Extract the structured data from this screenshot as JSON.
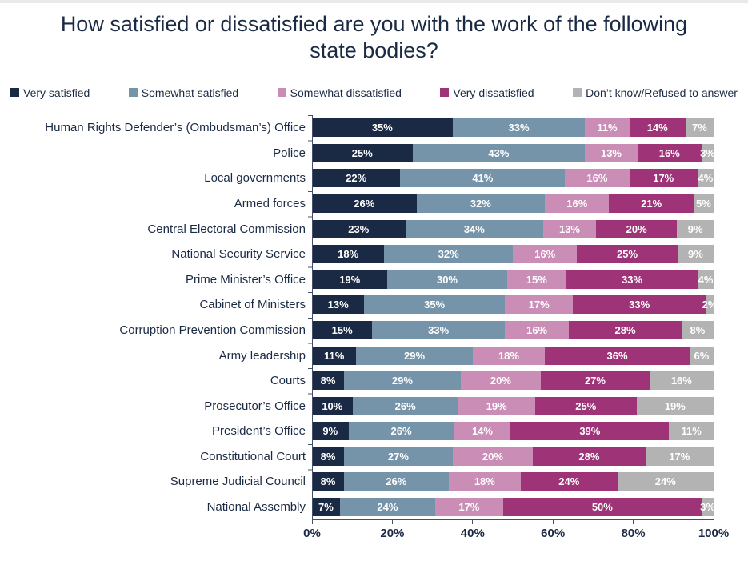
{
  "title": "How satisfied or dissatisfied are you with the work of the following state bodies?",
  "colors": {
    "title_text": "#1b2a44",
    "axis": "#44506a",
    "bar_label_text": "#ffffff",
    "background": "#ffffff",
    "top_border": "#e9e9ea"
  },
  "chart_data": {
    "type": "bar",
    "subtype": "100pct-stacked-horizontal",
    "title": "How satisfied or dissatisfied are you with the work of the following state bodies?",
    "legend_position": "top",
    "grid": false,
    "value_suffix": "%",
    "categories": [
      "Human Rights Defender’s (Ombudsman’s) Office",
      "Police",
      "Local governments",
      "Armed forces",
      "Central Electoral Commission",
      "National Security Service",
      "Prime Minister’s Office",
      "Cabinet of Ministers",
      "Corruption Prevention Commission",
      "Army leadership",
      "Courts",
      "Prosecutor’s Office",
      "President’s Office",
      "Constitutional Court",
      "Supreme Judicial Council",
      "National Assembly"
    ],
    "series": [
      {
        "name": "Very satisfied",
        "color": "#1b2a44",
        "values": [
          35,
          25,
          22,
          26,
          23,
          18,
          19,
          13,
          15,
          11,
          8,
          10,
          9,
          8,
          8,
          7
        ]
      },
      {
        "name": "Somewhat satisfied",
        "color": "#7594aa",
        "values": [
          33,
          43,
          41,
          32,
          34,
          32,
          30,
          35,
          33,
          29,
          29,
          26,
          26,
          27,
          26,
          24
        ]
      },
      {
        "name": "Somewhat dissatisfied",
        "color": "#c98db6",
        "values": [
          11,
          13,
          16,
          16,
          13,
          16,
          15,
          17,
          16,
          18,
          20,
          19,
          14,
          20,
          18,
          17
        ]
      },
      {
        "name": "Very dissatisfied",
        "color": "#9e3377",
        "values": [
          14,
          16,
          17,
          21,
          20,
          25,
          33,
          33,
          28,
          36,
          27,
          25,
          39,
          28,
          24,
          50
        ]
      },
      {
        "name": "Don’t know/Refused to answer",
        "color": "#b3b3b3",
        "values": [
          7,
          3,
          4,
          5,
          9,
          9,
          4,
          2,
          8,
          6,
          16,
          19,
          11,
          17,
          24,
          3
        ]
      }
    ],
    "x_axis": {
      "range": [
        0,
        100
      ],
      "ticks": [
        0,
        20,
        40,
        60,
        80,
        100
      ],
      "tick_labels": [
        "0%",
        "20%",
        "40%",
        "60%",
        "80%",
        "100%"
      ]
    }
  }
}
